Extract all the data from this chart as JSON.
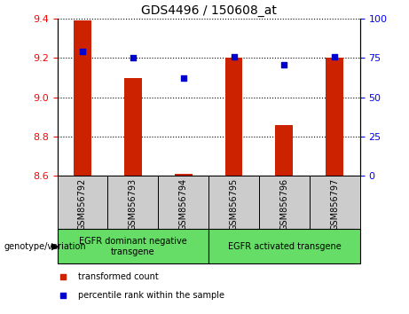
{
  "title": "GDS4496 / 150608_at",
  "samples": [
    "GSM856792",
    "GSM856793",
    "GSM856794",
    "GSM856795",
    "GSM856796",
    "GSM856797"
  ],
  "bar_values": [
    9.39,
    9.1,
    8.61,
    9.2,
    8.86,
    9.2
  ],
  "bar_base": 8.6,
  "percentile_values": [
    79,
    75,
    62,
    76,
    71,
    76
  ],
  "bar_color": "#cc2200",
  "dot_color": "#0000cc",
  "ylim_left": [
    8.6,
    9.4
  ],
  "ylim_right": [
    0,
    100
  ],
  "yticks_left": [
    8.6,
    8.8,
    9.0,
    9.2,
    9.4
  ],
  "yticks_right": [
    0,
    25,
    50,
    75,
    100
  ],
  "groups": [
    {
      "label": "EGFR dominant negative\ntransgene",
      "indices": [
        0,
        1,
        2
      ]
    },
    {
      "label": "EGFR activated transgene",
      "indices": [
        3,
        4,
        5
      ]
    }
  ],
  "legend_items": [
    {
      "label": "transformed count",
      "color": "#cc2200"
    },
    {
      "label": "percentile rank within the sample",
      "color": "#0000cc"
    }
  ],
  "bar_width": 0.35,
  "plot_bg": "#ffffff",
  "sample_label_bg": "#cccccc",
  "group_area_color": "#66dd66",
  "genotype_label": "genotype/variation",
  "title_fontsize": 10,
  "axis_fontsize": 8,
  "label_fontsize": 7,
  "legend_fontsize": 7
}
